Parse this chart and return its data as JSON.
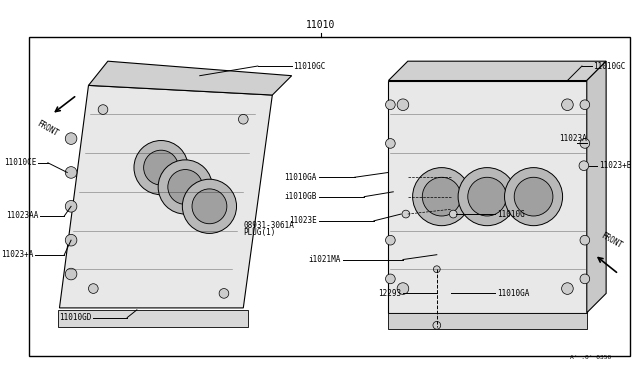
{
  "bg_color": "#ffffff",
  "border_color": "#000000",
  "line_color": "#000000",
  "part_color": "#d0d0d0",
  "figure_title": "11010",
  "footer": "A^ :0^ 0350",
  "parts_left": {
    "block_label": "11010CE",
    "fastener1": "11023AA",
    "fastener2": "11023+A",
    "base_label": "11010GD",
    "top_label": "11010GC",
    "front_label": "FRONT"
  },
  "parts_center": {
    "plug_label": "08931-3061A",
    "plug_text": "PLUG(1)",
    "label_ga": "11010GA",
    "label_gb": "i1010GB",
    "label_e": "11023E",
    "label_ma": "i1021MA",
    "label_12293": "12293",
    "label_ga2": "11010GA"
  },
  "parts_right": {
    "top_label": "11010GC",
    "label_b": "11023+B",
    "label_a": "11023A",
    "label_g": "11010G",
    "front_label": "FRONT"
  },
  "font_size_label": 5.5,
  "font_size_title": 7,
  "font_size_small": 5
}
